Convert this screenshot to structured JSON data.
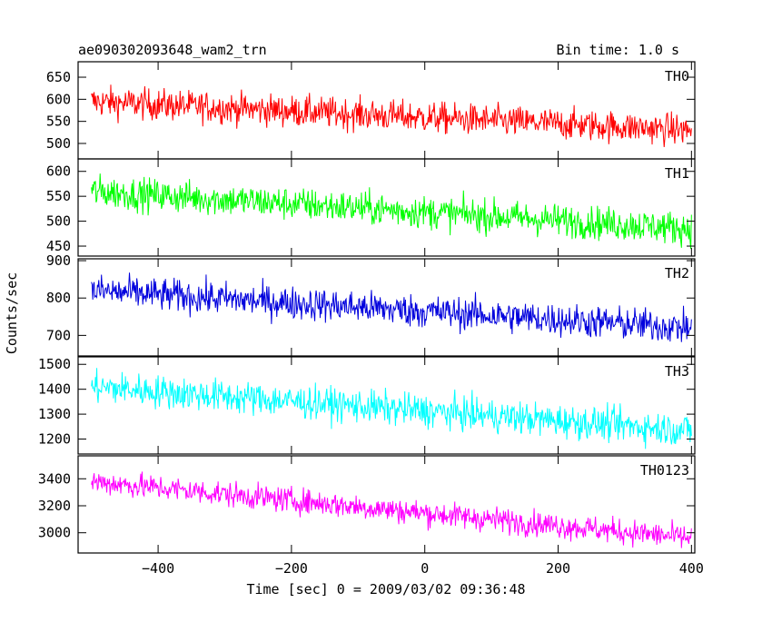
{
  "header": {
    "left_title": "ae090302093648_wam2_trn",
    "right_title": "Bin time: 1.0 s"
  },
  "chart_data": {
    "type": "line",
    "ylabel": "Counts/sec",
    "xlabel": "Time [sec] 0 = 2009/03/02 09:36:48",
    "xlim": [
      -520,
      405
    ],
    "x_ticks": [
      -400,
      -200,
      0,
      200,
      400
    ],
    "x_tick_labels": [
      "−400",
      "−200",
      "0",
      "200",
      "400"
    ],
    "bin_time": 1.0,
    "x_start": -500,
    "x_end": 400,
    "panels": [
      {
        "name": "TH0",
        "color": "#ff0000",
        "ylim": [
          465,
          685
        ],
        "y_ticks": [
          500,
          550,
          600,
          650
        ],
        "y_tick_labels": [
          "500",
          "550",
          "600",
          "650"
        ],
        "trend_start": 595,
        "trend_end": 530,
        "noise_amp": 32
      },
      {
        "name": "TH1",
        "color": "#00ff00",
        "ylim": [
          430,
          625
        ],
        "y_ticks": [
          450,
          500,
          550,
          600
        ],
        "y_tick_labels": [
          "450",
          "500",
          "550",
          "600"
        ],
        "trend_start": 560,
        "trend_end": 485,
        "noise_amp": 30
      },
      {
        "name": "TH2",
        "color": "#0000dd",
        "ylim": [
          645,
          905
        ],
        "y_ticks": [
          700,
          800,
          900
        ],
        "y_tick_labels": [
          "700",
          "800",
          "900"
        ],
        "trend_start": 820,
        "trend_end": 720,
        "noise_amp": 40
      },
      {
        "name": "TH3",
        "color": "#00ffff",
        "ylim": [
          1140,
          1530
        ],
        "y_ticks": [
          1200,
          1300,
          1400,
          1500
        ],
        "y_tick_labels": [
          "1200",
          "1300",
          "1400",
          "1500"
        ],
        "trend_start": 1410,
        "trend_end": 1235,
        "noise_amp": 60
      },
      {
        "name": "TH0123",
        "color": "#ff00ff",
        "ylim": [
          2850,
          3570
        ],
        "y_ticks": [
          3000,
          3200,
          3400
        ],
        "y_tick_labels": [
          "3000",
          "3200",
          "3400"
        ],
        "trend_start": 3380,
        "trend_end": 2960,
        "noise_amp": 85
      }
    ]
  }
}
